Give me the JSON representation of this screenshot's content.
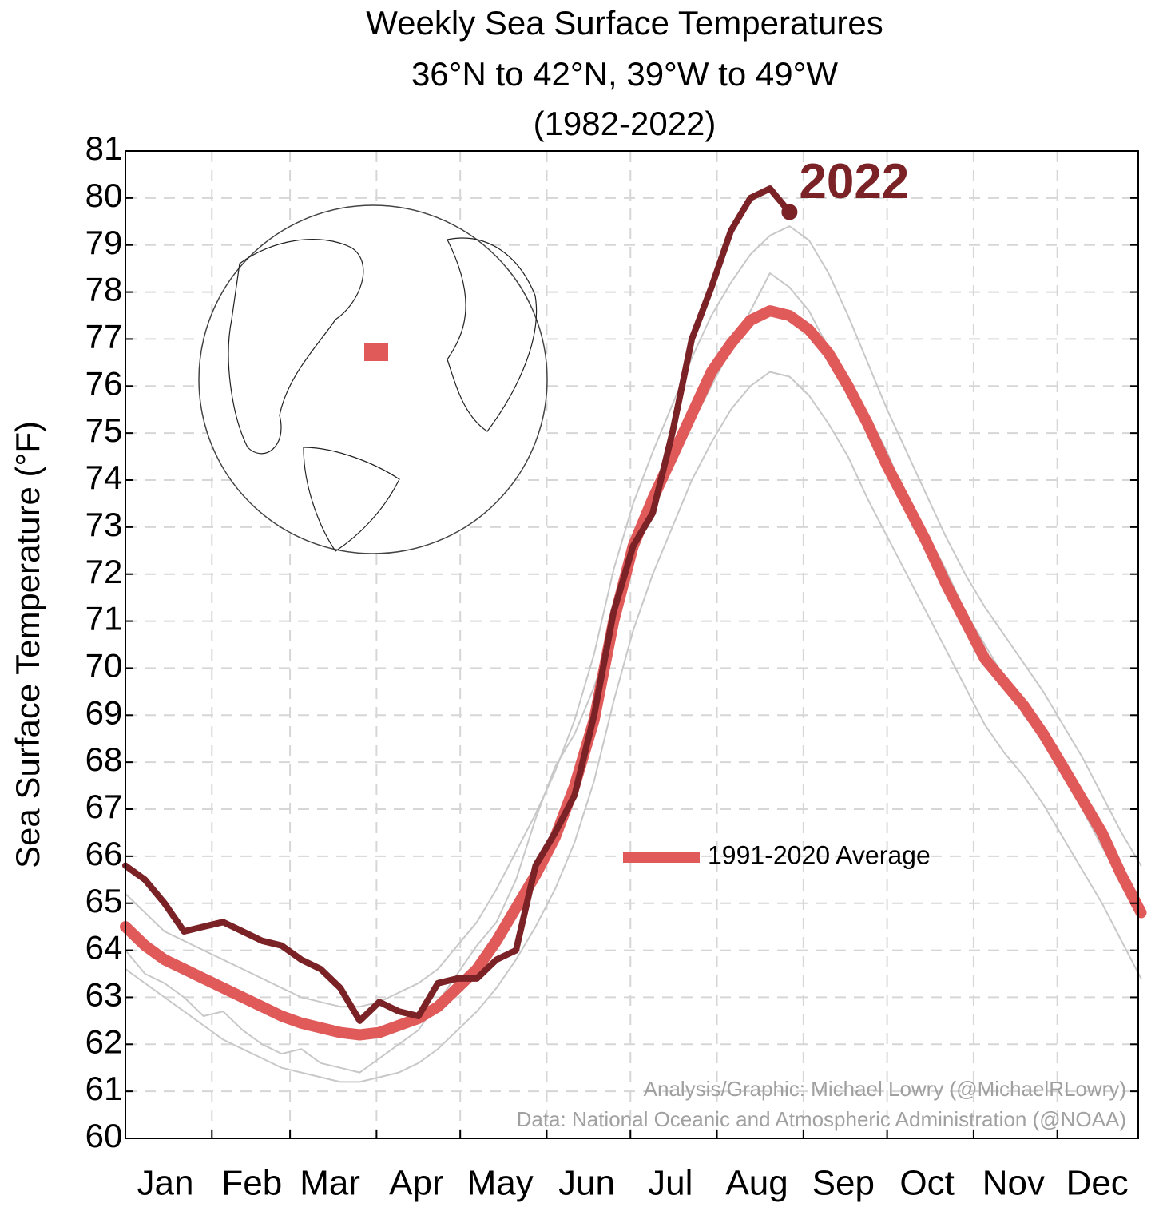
{
  "chart_data": {
    "type": "line",
    "title": [
      "Weekly Sea Surface Temperatures",
      "36°N to 42°N, 39°W to 49°W",
      "(1982-2022)"
    ],
    "y_label": "Sea Surface Temperature (°F)",
    "credits": [
      "Analysis/Graphic: Michael Lowry (@MichaelRLowry)",
      "Data: National Oceanic and Atmospheric Administration (@NOAA)"
    ],
    "x": [
      1,
      8,
      15,
      22,
      29,
      36,
      43,
      50,
      57,
      64,
      71,
      78,
      85,
      92,
      99,
      106,
      113,
      120,
      127,
      134,
      141,
      148,
      155,
      162,
      169,
      176,
      183,
      190,
      197,
      204,
      211,
      218,
      225,
      232,
      239,
      246,
      253,
      260,
      267,
      274,
      281,
      288,
      295,
      302,
      309,
      316,
      323,
      330,
      337,
      344,
      351,
      358,
      365
    ],
    "xlim": [
      1,
      364
    ],
    "xticks": [
      {
        "value": 1,
        "label": "Jan"
      },
      {
        "value": 32,
        "label": "Feb"
      },
      {
        "value": 60,
        "label": "Mar"
      },
      {
        "value": 91,
        "label": "Apr"
      },
      {
        "value": 121,
        "label": "May"
      },
      {
        "value": 152,
        "label": "Jun"
      },
      {
        "value": 182,
        "label": "Jul"
      },
      {
        "value": 213,
        "label": "Aug"
      },
      {
        "value": 244,
        "label": "Sep"
      },
      {
        "value": 274,
        "label": "Oct"
      },
      {
        "value": 305,
        "label": "Nov"
      },
      {
        "value": 335,
        "label": "Dec"
      }
    ],
    "ylim": [
      60,
      81
    ],
    "yticks": [
      60,
      61,
      62,
      63,
      64,
      65,
      66,
      67,
      68,
      69,
      70,
      71,
      72,
      73,
      74,
      75,
      76,
      77,
      78,
      79,
      80,
      81
    ],
    "grid": true,
    "legend": "center-right",
    "series": [
      {
        "color": "#c8c8c8",
        "values": [
          65.2,
          64.8,
          64.4,
          64.2,
          64.0,
          63.8,
          63.6,
          63.4,
          63.2,
          63.0,
          62.9,
          62.8,
          62.8,
          62.9,
          63.1,
          63.3,
          63.6,
          64.1,
          64.6,
          65.3,
          66.1,
          66.9,
          67.8,
          68.9,
          70.3,
          72.1,
          73.5,
          74.6,
          75.6,
          76.6,
          77.5,
          78.2,
          78.8,
          79.2,
          79.4,
          79.1,
          78.4,
          77.5,
          76.5,
          75.5,
          74.6,
          73.7,
          72.8,
          72.0,
          71.3,
          70.7,
          70.1,
          69.5,
          68.8,
          68.1,
          67.3,
          66.5,
          65.8
        ]
      },
      {
        "color": "#c8c8c8",
        "values": [
          63.6,
          63.3,
          63.0,
          62.7,
          62.4,
          62.1,
          61.9,
          61.7,
          61.5,
          61.4,
          61.3,
          61.2,
          61.2,
          61.3,
          61.4,
          61.6,
          61.9,
          62.3,
          62.7,
          63.2,
          63.8,
          64.5,
          65.3,
          66.3,
          67.6,
          69.3,
          70.8,
          72.0,
          73.0,
          74.0,
          74.8,
          75.5,
          76.0,
          76.3,
          76.2,
          75.8,
          75.2,
          74.5,
          73.6,
          72.8,
          72.0,
          71.2,
          70.4,
          69.6,
          68.8,
          68.2,
          67.7,
          67.1,
          66.4,
          65.7,
          65.0,
          64.2,
          63.4
        ]
      },
      {
        "color": "#c8c8c8",
        "values": [
          64.0,
          63.5,
          63.3,
          63.0,
          62.6,
          62.7,
          62.3,
          62.0,
          61.8,
          61.9,
          61.6,
          61.5,
          61.4,
          61.7,
          62.0,
          62.3,
          62.9,
          63.5,
          64.1,
          64.6,
          65.5,
          66.8,
          67.9,
          68.6,
          69.6,
          70.8,
          72.3,
          73.4,
          74.4,
          75.2,
          76.0,
          76.8,
          77.6,
          78.4,
          78.1,
          77.6,
          76.8,
          76.2,
          75.4,
          74.6,
          73.6,
          72.9,
          72.1,
          71.2,
          70.5,
          69.8,
          69.0,
          68.5,
          67.7,
          67.0,
          66.2,
          65.5,
          64.9
        ]
      },
      {
        "name": "1991-2020 Average",
        "color": "#e05a5a",
        "width": 14,
        "values": [
          64.5,
          64.1,
          63.8,
          63.6,
          63.4,
          63.2,
          63.0,
          62.8,
          62.6,
          62.45,
          62.35,
          62.25,
          62.2,
          62.25,
          62.4,
          62.55,
          62.8,
          63.2,
          63.6,
          64.2,
          64.9,
          65.6,
          66.4,
          67.5,
          68.9,
          71.0,
          72.6,
          73.6,
          74.5,
          75.4,
          76.3,
          76.9,
          77.4,
          77.6,
          77.5,
          77.2,
          76.7,
          76.0,
          75.2,
          74.3,
          73.5,
          72.7,
          71.8,
          71.0,
          70.2,
          69.7,
          69.2,
          68.6,
          67.9,
          67.2,
          66.5,
          65.6,
          64.8
        ]
      },
      {
        "name": "2022",
        "color": "#7b2226",
        "width": 8,
        "direct_label": true,
        "values": [
          65.8,
          65.5,
          65.0,
          64.4,
          64.5,
          64.6,
          64.4,
          64.2,
          64.1,
          63.8,
          63.6,
          63.2,
          62.5,
          62.9,
          62.7,
          62.6,
          63.3,
          63.4,
          63.4,
          63.8,
          64.0,
          65.8,
          66.5,
          67.3,
          69.0,
          71.2,
          72.6,
          73.3,
          75.0,
          77.0,
          78.1,
          79.3,
          80.0,
          80.2,
          79.7,
          null,
          null,
          null,
          null,
          null,
          null,
          null,
          null,
          null,
          null,
          null,
          null,
          null,
          null,
          null,
          null,
          null,
          null
        ]
      }
    ]
  }
}
